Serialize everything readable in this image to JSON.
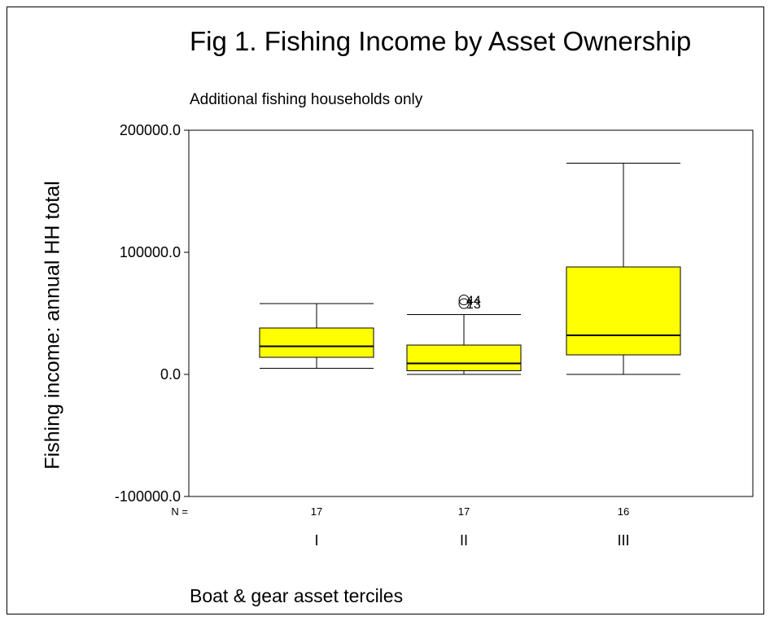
{
  "chart_data": {
    "type": "box",
    "title": "Fig 1. Fishing Income by Asset Ownership",
    "subtitle": "Additional fishing households only",
    "xlabel": "Boat & gear asset terciles",
    "ylabel": "Fishing income: annual HH total",
    "ylim": [
      -100000,
      200000
    ],
    "yticks": [
      {
        "value": 200000,
        "label": "200000.0"
      },
      {
        "value": 100000,
        "label": "100000.0"
      },
      {
        "value": 0,
        "label": "0.0"
      },
      {
        "value": -100000,
        "label": "-100000.0"
      }
    ],
    "n_label": "N =",
    "categories": [
      "I",
      "II",
      "III"
    ],
    "n": [
      "17",
      "17",
      "16"
    ],
    "box_color": "#ffff00",
    "boxes": [
      {
        "category": "I",
        "min": 5000,
        "q1": 14000,
        "median": 23000,
        "q3": 38000,
        "max": 58000,
        "outliers": []
      },
      {
        "category": "II",
        "min": 0,
        "q1": 3000,
        "median": 9000,
        "q3": 24000,
        "max": 49000,
        "outliers": [
          {
            "value": 61000,
            "label": "44"
          },
          {
            "value": 58000,
            "label": "13"
          }
        ]
      },
      {
        "category": "III",
        "min": 0,
        "q1": 16000,
        "median": 32000,
        "q3": 88000,
        "max": 173000,
        "outliers": []
      }
    ]
  }
}
